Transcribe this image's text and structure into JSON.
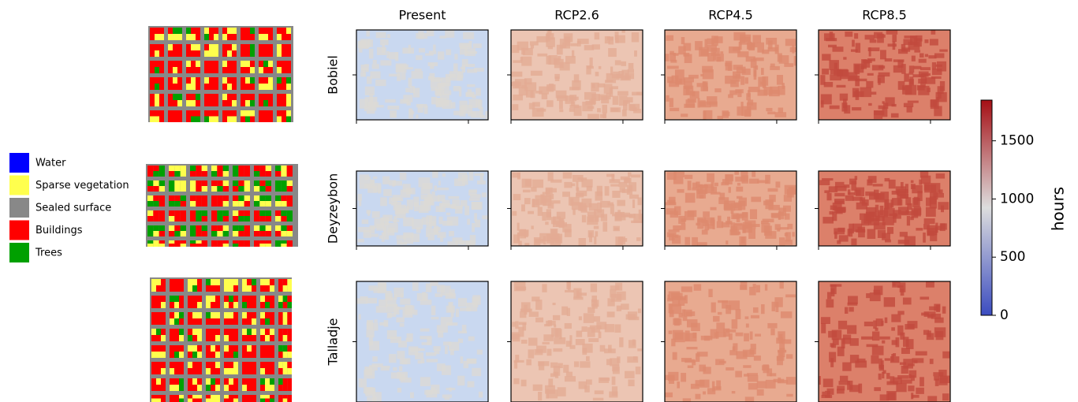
{
  "figure": {
    "columns": [
      "Present",
      "RCP2.6",
      "RCP4.5",
      "RCP8.5"
    ],
    "rows": [
      "Bobiel",
      "Deyzeybon",
      "Talladje"
    ],
    "legend": [
      {
        "label": "Water",
        "color": "#0000ff"
      },
      {
        "label": "Sparse vegetation",
        "color": "#ffff4d"
      },
      {
        "label": "Sealed surface",
        "color": "#888888"
      },
      {
        "label": "Buildings",
        "color": "#ff0000"
      },
      {
        "label": "Trees",
        "color": "#00a000"
      }
    ],
    "colorbar": {
      "label": "hours",
      "lim": [
        0,
        1850
      ],
      "ticks": [
        0,
        500,
        1000,
        1500
      ],
      "colors": [
        "#3b4cc0",
        "#dddddd",
        "#a50f15"
      ]
    }
  }
}
